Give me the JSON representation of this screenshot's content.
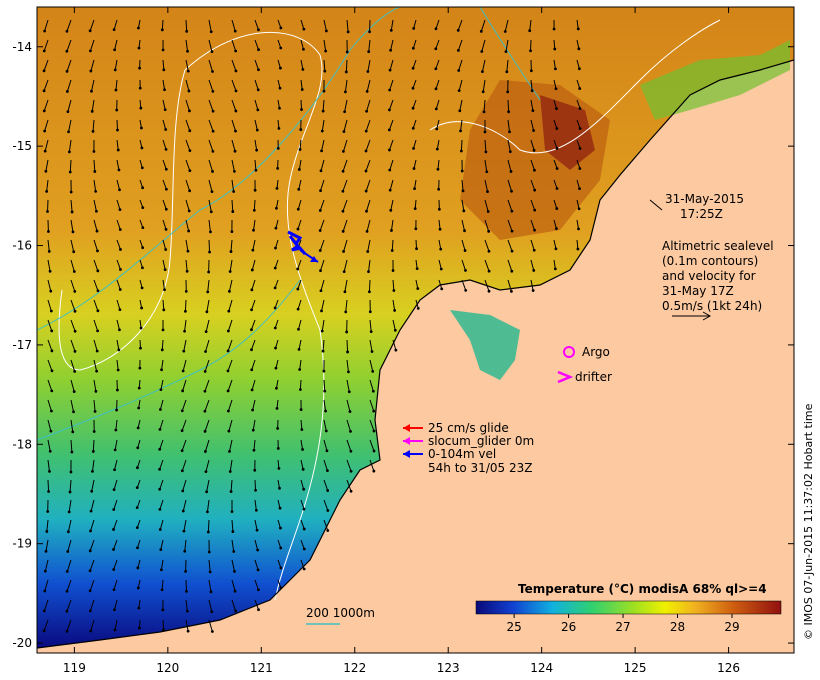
{
  "map": {
    "lon_range": [
      118.6,
      126.7
    ],
    "lat_range": [
      -20.1,
      -13.6
    ],
    "x_ticks": [
      "119",
      "120",
      "121",
      "122",
      "123",
      "124",
      "125",
      "126"
    ],
    "y_ticks": [
      "-14",
      "-15",
      "-16",
      "-17",
      "-18",
      "-19",
      "-20"
    ]
  },
  "annotations": {
    "date": "31-May-2015",
    "time": "17:25Z",
    "alt_line1": "Altimetric sealevel",
    "alt_line2": "(0.1m contours)",
    "alt_line3": "and velocity for",
    "alt_line4": "31-May 17Z",
    "alt_line5": "0.5m/s (1kt 24h)"
  },
  "legend": {
    "argo": "Argo",
    "drifter": "drifter",
    "glide": "25 cm/s glide",
    "slocum": "slocum_glider 0m",
    "vel": "0-104m vel",
    "vel_period": "54h to 31/05 23Z",
    "bathy": "200  1000m",
    "colors": {
      "glide": "#ff0000",
      "slocum": "#ff00ff",
      "vel": "#0000ff",
      "argo": "#ff00ff",
      "bathy": "#40c0c0"
    }
  },
  "colorbar": {
    "title": "Temperature (°C) modisA 68% ql>=4",
    "ticks": [
      "25",
      "26",
      "27",
      "28",
      "29"
    ]
  },
  "credit": "© IMOS 07-Jun-2015 11:37:02 Hobart time",
  "colors": {
    "land": "#fcc9a0",
    "warm_sea": "#d07a14",
    "cool_sea": "#2a0fa0"
  }
}
